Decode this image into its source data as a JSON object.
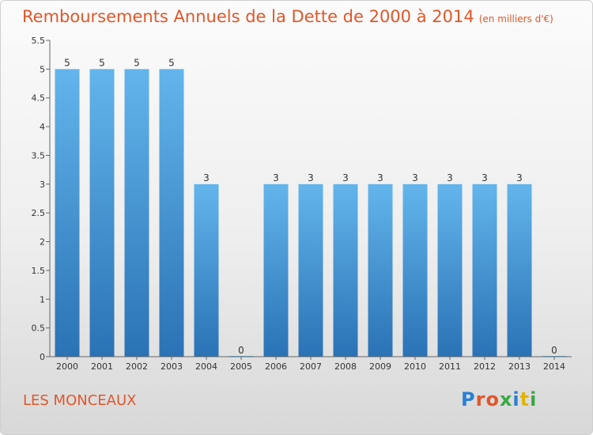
{
  "title": "Remboursements Annuels de la Dette de 2000 à 2014",
  "unit_note": "(en milliers d'€)",
  "place": "LES MONCEAUX",
  "logo": {
    "text": "Proxiti",
    "colors": [
      "#2a7fd4",
      "#e0572a",
      "#e0572a",
      "#3aa843",
      "#2a7fd4",
      "#e2b400",
      "#3aa843"
    ]
  },
  "colors": {
    "title": "#e0572a",
    "bar_top": "#63b5ec",
    "bar_bottom": "#2a72b5"
  },
  "chart_data": {
    "type": "bar",
    "categories": [
      "2000",
      "2001",
      "2002",
      "2003",
      "2004",
      "2005",
      "2006",
      "2007",
      "2008",
      "2009",
      "2010",
      "2011",
      "2012",
      "2013",
      "2014"
    ],
    "values": [
      5,
      5,
      5,
      5,
      3,
      0,
      3,
      3,
      3,
      3,
      3,
      3,
      3,
      3,
      0
    ],
    "ylim": [
      0,
      5.5
    ],
    "yticks": [
      "0",
      "0.5",
      "1",
      "1.5",
      "2",
      "2.5",
      "3",
      "3.5",
      "4",
      "4.5",
      "5",
      "5.5"
    ],
    "title": "Remboursements Annuels de la Dette de 2000 à 2014",
    "xlabel": "",
    "ylabel": "",
    "grid": false
  }
}
